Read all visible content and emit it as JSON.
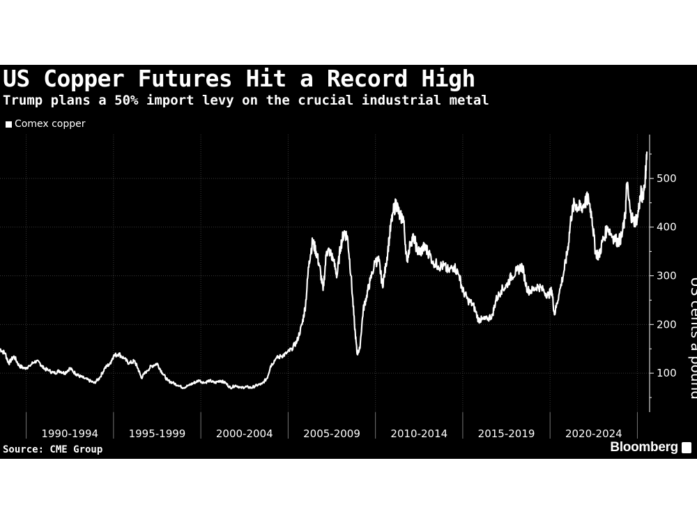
{
  "header": {
    "title": "US Copper Futures Hit a Record High",
    "subtitle": "Trump plans a 50% import levy on the crucial industrial metal"
  },
  "footer": {
    "source": "Source: CME Group",
    "brand": "Bloomberg"
  },
  "colors": {
    "background": "#000000",
    "line": "#ffffff",
    "grid": "#3a3a3a"
  },
  "chart_data": {
    "type": "line",
    "title": "US Copper Futures Hit a Record High",
    "subtitle": "Trump plans a 50% import levy on the crucial industrial metal",
    "ylabel": "US cents a pound",
    "xlabel": "",
    "legend": {
      "position": "top-left",
      "entries": [
        "Comex copper"
      ]
    },
    "grid": true,
    "y_axis_side": "right",
    "ylim": [
      20,
      590
    ],
    "xlim": [
      1988.5,
      2025.7
    ],
    "yticks": [
      100,
      200,
      300,
      400,
      500
    ],
    "xtick_labels": [
      "1990-1994",
      "1995-1999",
      "2000-2004",
      "2005-2009",
      "2010-2014",
      "2015-2019",
      "2020-2024"
    ],
    "x_period_bounds": [
      1990,
      1995,
      2000,
      2005,
      2010,
      2015,
      2020,
      2025
    ],
    "series": [
      {
        "name": "Comex copper",
        "x": [
          1988.5,
          1988.8,
          1989.0,
          1989.3,
          1989.6,
          1989.9,
          1990.2,
          1990.5,
          1990.8,
          1991.0,
          1991.3,
          1991.6,
          1991.9,
          1992.2,
          1992.5,
          1992.8,
          1993.0,
          1993.3,
          1993.6,
          1993.9,
          1994.2,
          1994.5,
          1994.8,
          1995.0,
          1995.3,
          1995.6,
          1995.9,
          1996.2,
          1996.4,
          1996.6,
          1996.9,
          1997.2,
          1997.5,
          1997.8,
          1998.1,
          1998.4,
          1998.7,
          1999.0,
          1999.3,
          1999.6,
          1999.9,
          2000.2,
          2000.5,
          2000.8,
          2001.1,
          2001.4,
          2001.7,
          2002.0,
          2002.3,
          2002.6,
          2002.9,
          2003.2,
          2003.5,
          2003.8,
          2004.0,
          2004.3,
          2004.6,
          2004.9,
          2005.2,
          2005.5,
          2005.8,
          2006.0,
          2006.2,
          2006.4,
          2006.6,
          2006.8,
          2007.0,
          2007.2,
          2007.4,
          2007.6,
          2007.8,
          2008.0,
          2008.2,
          2008.4,
          2008.6,
          2008.8,
          2008.95,
          2009.1,
          2009.3,
          2009.5,
          2009.7,
          2010.0,
          2010.2,
          2010.4,
          2010.6,
          2010.8,
          2011.0,
          2011.2,
          2011.4,
          2011.6,
          2011.8,
          2012.0,
          2012.2,
          2012.4,
          2012.6,
          2012.8,
          2013.0,
          2013.3,
          2013.6,
          2013.9,
          2014.2,
          2014.5,
          2014.8,
          2015.0,
          2015.3,
          2015.6,
          2015.9,
          2016.1,
          2016.4,
          2016.7,
          2016.9,
          2017.2,
          2017.5,
          2017.8,
          2018.1,
          2018.4,
          2018.7,
          2019.0,
          2019.3,
          2019.6,
          2019.9,
          2020.1,
          2020.25,
          2020.5,
          2020.8,
          2021.0,
          2021.2,
          2021.4,
          2021.6,
          2021.8,
          2022.0,
          2022.2,
          2022.4,
          2022.6,
          2022.8,
          2023.0,
          2023.3,
          2023.6,
          2023.9,
          2024.1,
          2024.3,
          2024.4,
          2024.6,
          2024.8,
          2025.0,
          2025.2,
          2025.3,
          2025.45,
          2025.55
        ],
        "y": [
          150,
          140,
          120,
          135,
          115,
          110,
          115,
          125,
          120,
          110,
          105,
          100,
          105,
          100,
          110,
          100,
          95,
          90,
          85,
          80,
          90,
          110,
          120,
          135,
          140,
          130,
          120,
          125,
          110,
          90,
          105,
          115,
          120,
          100,
          85,
          80,
          75,
          70,
          75,
          80,
          85,
          80,
          85,
          80,
          85,
          80,
          70,
          75,
          70,
          72,
          70,
          75,
          78,
          90,
          115,
          130,
          135,
          140,
          150,
          165,
          200,
          240,
          330,
          370,
          350,
          320,
          270,
          350,
          350,
          330,
          300,
          360,
          390,
          380,
          300,
          200,
          140,
          150,
          230,
          260,
          290,
          330,
          330,
          280,
          320,
          380,
          430,
          450,
          420,
          420,
          330,
          370,
          380,
          350,
          350,
          360,
          350,
          330,
          320,
          320,
          310,
          320,
          300,
          270,
          250,
          240,
          210,
          210,
          210,
          220,
          250,
          270,
          280,
          300,
          310,
          320,
          270,
          270,
          280,
          270,
          260,
          270,
          220,
          260,
          310,
          350,
          420,
          450,
          440,
          440,
          450,
          460,
          420,
          350,
          340,
          370,
          400,
          380,
          370,
          380,
          420,
          490,
          430,
          410,
          420,
          470,
          460,
          500,
          555
        ]
      }
    ]
  }
}
